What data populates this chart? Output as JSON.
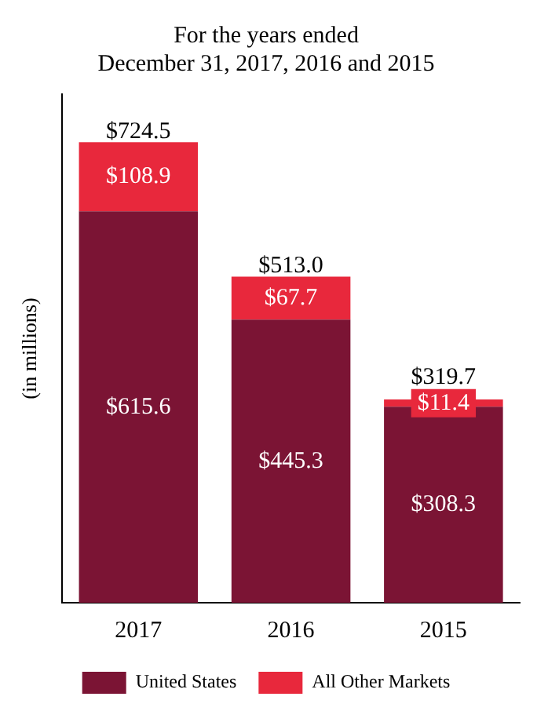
{
  "chart_data": {
    "type": "bar",
    "title": "For the years ended\nDecember 31, 2017, 2016 and 2015",
    "ylabel": "(in millions)",
    "categories": [
      "2017",
      "2016",
      "2015"
    ],
    "stacked": true,
    "legend": "bottom",
    "grid": false,
    "tick_labels": "x",
    "series": [
      {
        "name": "United States",
        "color": "#7b1434",
        "values": [
          615.6,
          445.3,
          308.3
        ],
        "value_labels": [
          "$615.6",
          "$445.3",
          "$308.3"
        ]
      },
      {
        "name": "All Other Markets",
        "color": "#e8283c",
        "values": [
          108.9,
          67.7,
          11.4
        ],
        "value_labels": [
          "$108.9",
          "$67.7",
          "$11.4"
        ]
      }
    ],
    "totals": [
      "$724.5",
      "$513.0",
      "$319.7"
    ]
  }
}
